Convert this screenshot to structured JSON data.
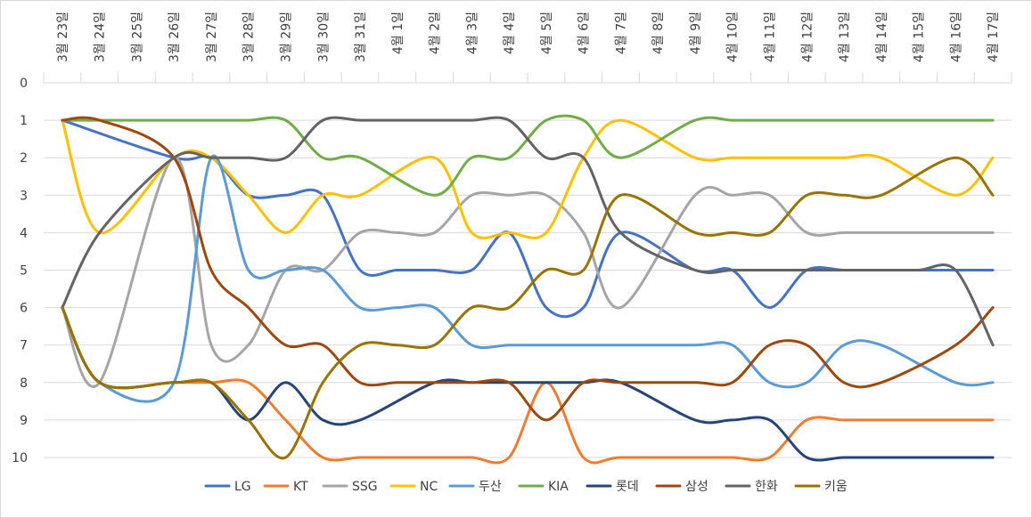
{
  "chart_data": {
    "type": "line",
    "title": "",
    "xlabel": "",
    "ylabel": "",
    "y_reversed": true,
    "ylim": [
      0,
      10
    ],
    "yticks": [
      "0",
      "1",
      "2",
      "3",
      "4",
      "5",
      "6",
      "7",
      "8",
      "9",
      "10"
    ],
    "grid": true,
    "legend_position": "bottom",
    "categories": [
      "3월 23일",
      "3월 24일",
      "3월 25일",
      "3월 26일",
      "3월 27일",
      "3월 28일",
      "3월 29일",
      "3월 30일",
      "3월 31일",
      "4월 1일",
      "4월 2일",
      "4월 3일",
      "4월 4일",
      "4월 5일",
      "4월 6일",
      "4월 7일",
      "4월 8일",
      "4월 9일",
      "4월 10일",
      "4월 11일",
      "4월 12일",
      "4월 13일",
      "4월 14일",
      "4월 15일",
      "4월 16일",
      "4월 17일"
    ],
    "series": [
      {
        "name": "LG",
        "color": "#4472C4",
        "values": [
          1,
          null,
          null,
          2,
          2,
          3,
          3,
          3,
          5,
          5,
          5,
          5,
          4,
          6,
          6,
          4,
          null,
          5,
          5,
          6,
          5,
          5,
          5,
          5,
          5,
          5
        ]
      },
      {
        "name": "KT",
        "color": "#ED7D31",
        "values": [
          6,
          8,
          null,
          8,
          8,
          8,
          9,
          10,
          10,
          10,
          10,
          10,
          10,
          8,
          10,
          10,
          null,
          10,
          10,
          10,
          9,
          9,
          9,
          9,
          9,
          9
        ]
      },
      {
        "name": "SSG",
        "color": "#A5A5A5",
        "values": [
          6,
          8,
          null,
          2,
          7,
          7,
          5,
          5,
          4,
          4,
          4,
          3,
          3,
          3,
          4,
          6,
          null,
          3,
          3,
          3,
          4,
          4,
          4,
          4,
          4,
          4
        ]
      },
      {
        "name": "NC",
        "color": "#FFC000",
        "values": [
          1,
          4,
          null,
          2,
          2,
          3,
          4,
          3,
          3,
          null,
          2,
          4,
          4,
          4,
          2,
          1,
          null,
          2,
          2,
          2,
          2,
          2,
          2,
          null,
          3,
          2
        ]
      },
      {
        "name": "두산",
        "color": "#5B9BD5",
        "values": [
          6,
          8,
          null,
          8,
          2,
          5,
          5,
          5,
          6,
          6,
          6,
          7,
          7,
          7,
          7,
          7,
          null,
          7,
          7,
          8,
          8,
          7,
          7,
          null,
          8,
          8
        ]
      },
      {
        "name": "KIA",
        "color": "#70AD47",
        "values": [
          1,
          1,
          null,
          1,
          1,
          1,
          1,
          2,
          2,
          null,
          3,
          2,
          2,
          1,
          1,
          2,
          null,
          1,
          1,
          1,
          1,
          1,
          1,
          1,
          1,
          1
        ]
      },
      {
        "name": "롯데",
        "color": "#264478",
        "values": [
          6,
          8,
          null,
          8,
          8,
          9,
          8,
          9,
          9,
          null,
          8,
          8,
          8,
          8,
          8,
          8,
          null,
          9,
          9,
          9,
          10,
          10,
          10,
          10,
          10,
          10
        ]
      },
      {
        "name": "삼성",
        "color": "#9E480E",
        "values": [
          1,
          1,
          null,
          2,
          5,
          6,
          7,
          7,
          8,
          8,
          8,
          8,
          8,
          9,
          8,
          8,
          null,
          8,
          8,
          7,
          7,
          8,
          8,
          null,
          7,
          6
        ]
      },
      {
        "name": "한화",
        "color": "#636363",
        "values": [
          6,
          4,
          null,
          2,
          2,
          2,
          2,
          1,
          1,
          1,
          1,
          1,
          1,
          2,
          2,
          4,
          null,
          5,
          5,
          5,
          5,
          5,
          5,
          5,
          5,
          7
        ]
      },
      {
        "name": "키움",
        "color": "#997300",
        "values": [
          6,
          8,
          null,
          8,
          8,
          9,
          10,
          8,
          7,
          7,
          7,
          6,
          6,
          5,
          5,
          3,
          null,
          4,
          4,
          4,
          3,
          3,
          3,
          null,
          2,
          3
        ]
      }
    ]
  }
}
